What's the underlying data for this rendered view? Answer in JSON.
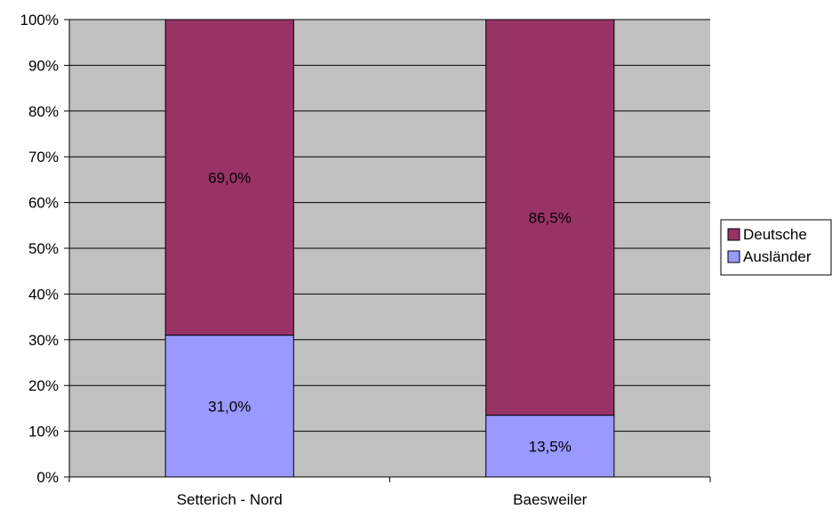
{
  "chart_data": {
    "type": "bar",
    "stacked": "percent",
    "categories": [
      "Setterich - Nord",
      "Baesweiler"
    ],
    "series": [
      {
        "name": "Ausländer",
        "values": [
          31.0,
          13.5
        ],
        "labels": [
          "31,0%",
          "13,5%"
        ],
        "color": "#9999ff"
      },
      {
        "name": "Deutsche",
        "values": [
          69.0,
          86.5
        ],
        "labels": [
          "69,0%",
          "86,5%"
        ],
        "color": "#993366"
      }
    ],
    "yticks": [
      "0%",
      "10%",
      "20%",
      "30%",
      "40%",
      "50%",
      "60%",
      "70%",
      "80%",
      "90%",
      "100%"
    ],
    "ylim": [
      0,
      100
    ],
    "grid": true,
    "legend_position": "right",
    "legend_order": [
      "Deutsche",
      "Ausländer"
    ],
    "plot_background": "#c0c0c0"
  }
}
